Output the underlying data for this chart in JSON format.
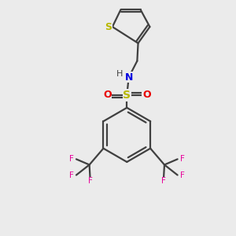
{
  "background_color": "#ebebeb",
  "sulfur_color": "#b8b800",
  "nitrogen_color": "#0000e0",
  "oxygen_color": "#e80000",
  "fluorine_color": "#e8009a",
  "carbon_color": "#404040",
  "bond_color": "#404040",
  "bond_width": 1.6,
  "figsize": [
    3.0,
    3.0
  ],
  "dpi": 100,
  "xlim": [
    -1.8,
    1.8
  ],
  "ylim": [
    -2.8,
    2.2
  ]
}
